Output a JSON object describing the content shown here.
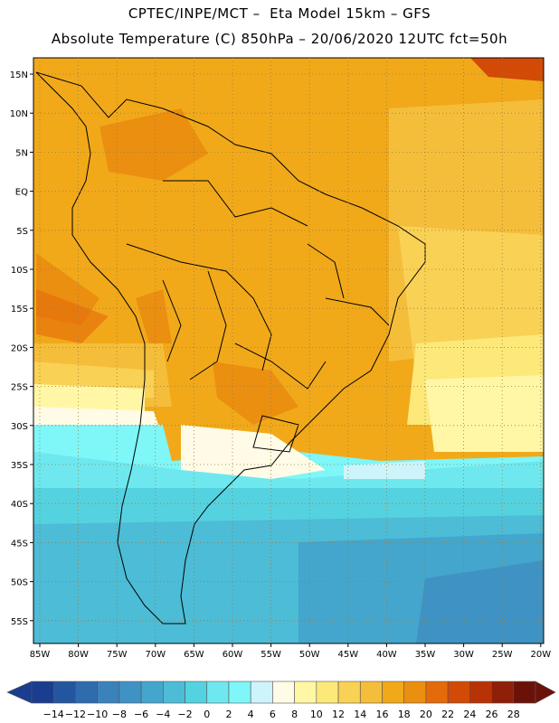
{
  "header": {
    "line1": "CPTEC/INPE/MCT –  Eta Model 15km – GFS",
    "line2": "Absolute Temperature (C) 850hPa – 20/06/2020 12UTC fct=50h"
  },
  "axes": {
    "lat_labels": [
      "15N",
      "10N",
      "5N",
      "EQ",
      "5S",
      "10S",
      "15S",
      "20S",
      "25S",
      "30S",
      "35S",
      "40S",
      "45S",
      "50S",
      "55S"
    ],
    "lon_labels": [
      "85W",
      "80W",
      "75W",
      "70W",
      "65W",
      "60W",
      "55W",
      "50W",
      "45W",
      "40W",
      "35W",
      "30W",
      "25W",
      "20W"
    ]
  },
  "colorbar": {
    "labels": [
      "-14",
      "-12",
      "-10",
      "-8",
      "-6",
      "-4",
      "-2",
      "0",
      "2",
      "4",
      "6",
      "8",
      "10",
      "12",
      "14",
      "16",
      "18",
      "20",
      "22",
      "24",
      "26",
      "28"
    ],
    "colors": [
      "#1a3d8f",
      "#2456a0",
      "#2e6cae",
      "#3a82bb",
      "#3f93c4",
      "#44a6cc",
      "#4dbcd6",
      "#55d2e0",
      "#6ee8ee",
      "#7ff6f8",
      "#cdf4fb",
      "#fffbe6",
      "#fff7a6",
      "#fde87a",
      "#f9d155",
      "#f4be3b",
      "#f1a91a",
      "#eb8f10",
      "#e46a0a",
      "#d24a05",
      "#b73205",
      "#8f1f08",
      "#6b1208"
    ]
  }
}
